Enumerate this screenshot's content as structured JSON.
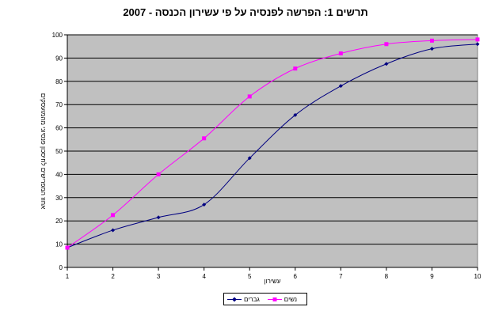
{
  "chart_data": {
    "type": "line",
    "title": "תרשים 1: הפרשה לפנסיה על פי עשירון הכנסה - 2007",
    "xlabel": "עשירון",
    "ylabel": "אחוז המפרישים לחיסכון פנסיוני מהמועסקים",
    "x": [
      1,
      2,
      3,
      4,
      5,
      6,
      7,
      8,
      9,
      10
    ],
    "xlim": [
      1,
      10
    ],
    "ylim": [
      0,
      100
    ],
    "yticks": [
      0,
      10,
      20,
      30,
      40,
      50,
      60,
      70,
      80,
      90,
      100
    ],
    "grid": true,
    "legend_position": "bottom",
    "series": [
      {
        "name": "גברים",
        "color": "#000080",
        "marker": "diamond",
        "values": [
          8.5,
          16,
          21.5,
          27,
          47,
          65.5,
          78,
          87.5,
          94,
          96
        ]
      },
      {
        "name": "נשים",
        "color": "#ff00ff",
        "marker": "square",
        "values": [
          8.5,
          22.5,
          40,
          55.5,
          73.5,
          85.5,
          92,
          96,
          97.5,
          98
        ]
      }
    ],
    "plot_background": "#c0c0c0"
  }
}
